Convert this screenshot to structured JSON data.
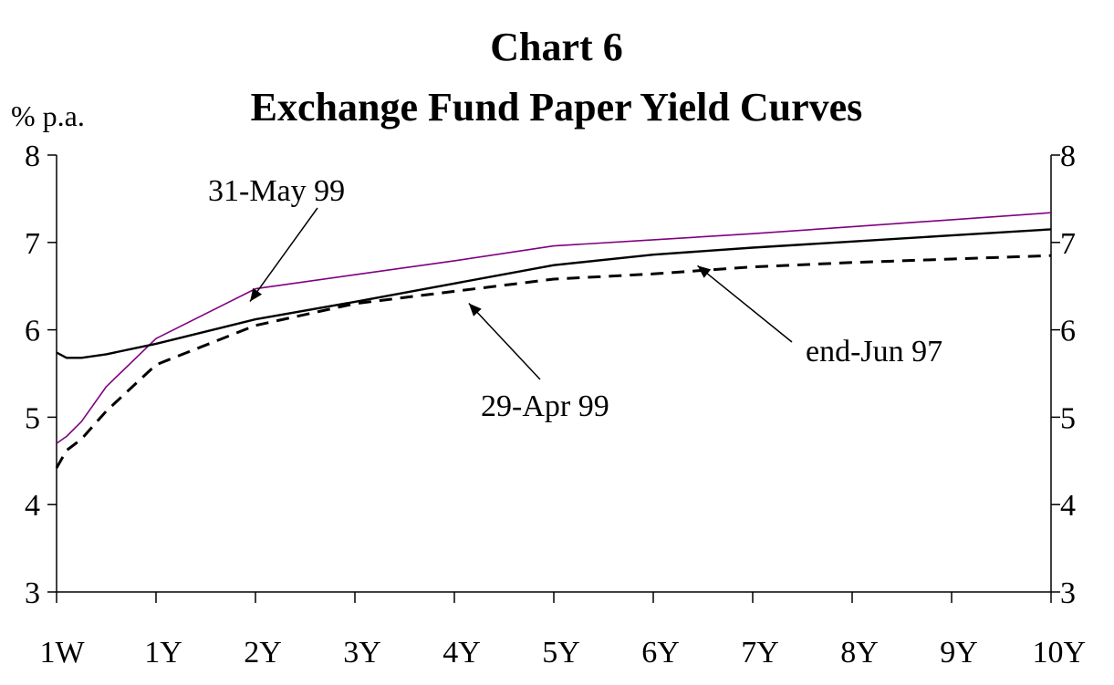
{
  "chart_data": {
    "type": "line",
    "title": "Chart 6",
    "subtitle": "Exchange Fund Paper Yield Curves",
    "ylabel": "% p.a.",
    "xlabel": "",
    "ylim": [
      3,
      8
    ],
    "yticks": [
      3,
      4,
      5,
      6,
      7,
      8
    ],
    "ytick_labels": [
      "3",
      "4",
      "5",
      "6",
      "7",
      "8"
    ],
    "categories": [
      "1W",
      "1Y",
      "2Y",
      "3Y",
      "4Y",
      "5Y",
      "6Y",
      "7Y",
      "8Y",
      "9Y",
      "10Y"
    ],
    "grid": false,
    "series": [
      {
        "name": "31-May 99",
        "color": "#800080",
        "style": "thin",
        "x": [
          0,
          0.1,
          0.25,
          0.5,
          1,
          2,
          3,
          4,
          5,
          6,
          7,
          8,
          9,
          10
        ],
        "values": [
          4.7,
          4.78,
          4.95,
          5.35,
          5.9,
          6.47,
          6.63,
          6.79,
          6.96,
          7.03,
          7.1,
          7.18,
          7.26,
          7.34
        ]
      },
      {
        "name": "end-Jun 97",
        "color": "#000000",
        "style": "solid",
        "x": [
          0,
          0.1,
          0.25,
          0.5,
          1,
          2,
          3,
          4,
          5,
          6,
          7,
          8,
          9,
          10
        ],
        "values": [
          5.74,
          5.68,
          5.68,
          5.72,
          5.84,
          6.12,
          6.32,
          6.53,
          6.74,
          6.86,
          6.94,
          7.01,
          7.08,
          7.15
        ]
      },
      {
        "name": "29-Apr 99",
        "color": "#000000",
        "style": "dashed",
        "x": [
          0,
          0.1,
          0.25,
          0.5,
          1,
          2,
          3,
          4,
          5,
          6,
          7,
          8,
          9,
          10
        ],
        "values": [
          4.42,
          4.62,
          4.75,
          5.07,
          5.6,
          6.05,
          6.3,
          6.44,
          6.58,
          6.64,
          6.72,
          6.77,
          6.81,
          6.85
        ]
      }
    ],
    "annotations": [
      {
        "text": "31-May 99",
        "points_to_x": 2,
        "points_to_y": 6.47
      },
      {
        "text": "end-Jun 97",
        "points_to_x": 6.5,
        "points_to_y": 6.88
      },
      {
        "text": "29-Apr 99",
        "points_to_x": 4.2,
        "points_to_y": 6.45
      }
    ]
  }
}
